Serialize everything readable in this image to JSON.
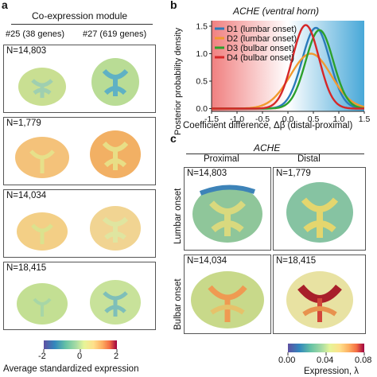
{
  "panel_a": {
    "letter": "a",
    "title": "Co-expression module",
    "col1": "#25 (38 genes)",
    "col2": "#27 (619 genes)",
    "n_labels": [
      "N=14,803",
      "N=1,779",
      "N=14,034",
      "N=18,415"
    ],
    "colorbar": {
      "ticks": [
        "-2",
        "0",
        "2"
      ],
      "label": "Average standardized expression"
    }
  },
  "panel_b": {
    "letter": "b",
    "chart_data": {
      "type": "line",
      "title": "ACHE (ventral horn)",
      "xlabel": "Coefficient difference, Δβ (distal-proximal)",
      "ylabel": "Posterior probability density",
      "xlim": [
        -1.5,
        1.5
      ],
      "ylim": [
        -0.05,
        1.6
      ],
      "xticks": [
        "-1.5",
        "-1.0",
        "-0.5",
        "0.0",
        "0.5",
        "1.0",
        "1.5"
      ],
      "yticks": [
        "0.0",
        "0.5",
        "1.0",
        "1.5"
      ],
      "legend_position": "top-left",
      "series": [
        {
          "name": "D1 (lumbar onset)",
          "color": "#2b7bba",
          "mean": 0.55,
          "sd": 0.27,
          "peak": 1.47
        },
        {
          "name": "D2 (lumbar onset)",
          "color": "#f29a2e",
          "mean": 0.45,
          "sd": 0.4,
          "peak": 1.0
        },
        {
          "name": "D3 (bulbar onset)",
          "color": "#2ca02c",
          "mean": 0.62,
          "sd": 0.27,
          "peak": 1.43
        },
        {
          "name": "D4 (bulbar onset)",
          "color": "#d62728",
          "mean": 0.35,
          "sd": 0.26,
          "peak": 1.52
        }
      ]
    }
  },
  "panel_c": {
    "letter": "c",
    "title": "ACHE",
    "col_proximal": "Proximal",
    "col_distal": "Distal",
    "row_lumbar": "Lumbar onset",
    "row_bulbar": "Bulbar onset",
    "n_labels": [
      "N=14,803",
      "N=1,779",
      "N=14,034",
      "N=18,415"
    ],
    "colorbar": {
      "ticks": [
        "0.00",
        "0.04",
        "0.08"
      ],
      "label": "Expression, λ"
    }
  }
}
